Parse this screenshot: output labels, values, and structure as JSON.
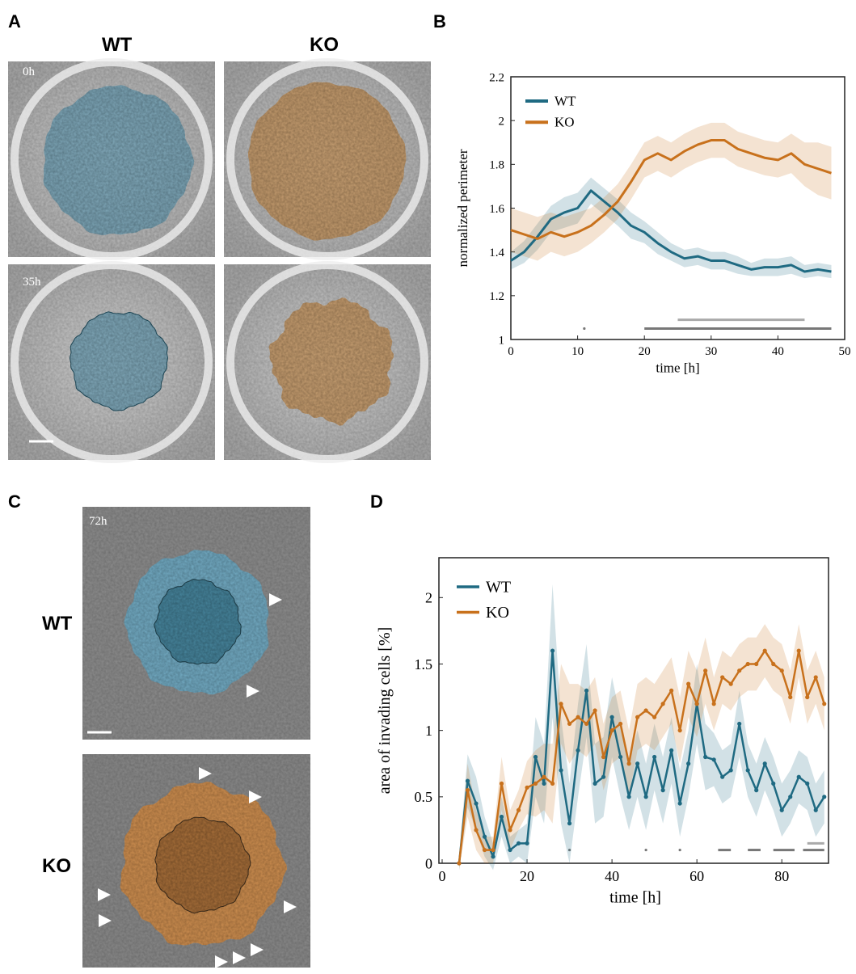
{
  "panel_labels": [
    "A",
    "B",
    "C",
    "D"
  ],
  "panel_a": {
    "column_titles": [
      "WT",
      "KO"
    ],
    "time_labels": [
      "0h",
      "35h"
    ]
  },
  "panel_c": {
    "time_label": "72h",
    "row_labels": [
      "WT",
      "KO"
    ]
  },
  "chart_data": [
    {
      "type": "line",
      "xlabel": "time [h]",
      "ylabel": "normalized perimeter",
      "xlim": [
        0,
        50
      ],
      "ylim": [
        1,
        2.2
      ],
      "xticks": [
        0,
        10,
        20,
        30,
        40,
        50
      ],
      "yticks": [
        1,
        1.2,
        1.4,
        1.6,
        1.8,
        2,
        2.2
      ],
      "legend": "upper-left",
      "markers": false,
      "x": [
        0,
        2,
        4,
        6,
        8,
        10,
        12,
        14,
        16,
        18,
        20,
        22,
        24,
        26,
        28,
        30,
        32,
        34,
        36,
        38,
        40,
        42,
        44,
        46,
        48
      ],
      "series": [
        {
          "name": "WT",
          "color": "#1f6a82",
          "values": [
            1.36,
            1.4,
            1.47,
            1.55,
            1.58,
            1.6,
            1.68,
            1.63,
            1.58,
            1.52,
            1.49,
            1.44,
            1.4,
            1.37,
            1.38,
            1.36,
            1.36,
            1.34,
            1.32,
            1.33,
            1.33,
            1.34,
            1.31,
            1.32,
            1.31
          ],
          "error": [
            0.04,
            0.05,
            0.06,
            0.06,
            0.07,
            0.07,
            0.06,
            0.06,
            0.06,
            0.06,
            0.05,
            0.05,
            0.04,
            0.04,
            0.04,
            0.04,
            0.04,
            0.04,
            0.03,
            0.04,
            0.04,
            0.04,
            0.03,
            0.03,
            0.03
          ]
        },
        {
          "name": "KO",
          "color": "#c8711c",
          "values": [
            1.5,
            1.48,
            1.46,
            1.49,
            1.47,
            1.49,
            1.52,
            1.57,
            1.63,
            1.72,
            1.82,
            1.85,
            1.82,
            1.86,
            1.89,
            1.91,
            1.91,
            1.87,
            1.85,
            1.83,
            1.82,
            1.85,
            1.8,
            1.78,
            1.76
          ],
          "error": [
            0.1,
            0.1,
            0.1,
            0.09,
            0.09,
            0.09,
            0.08,
            0.08,
            0.08,
            0.08,
            0.08,
            0.08,
            0.08,
            0.08,
            0.08,
            0.08,
            0.08,
            0.08,
            0.08,
            0.08,
            0.08,
            0.09,
            0.1,
            0.12,
            0.12
          ]
        }
      ],
      "significance": [
        {
          "x": [
            11,
            11
          ],
          "y": 1.05,
          "color": "#777777"
        },
        {
          "x": [
            20,
            48
          ],
          "y": 1.05,
          "color": "#777777"
        },
        {
          "x": [
            25,
            44
          ],
          "y": 1.09,
          "color": "#aaaaaa"
        }
      ]
    },
    {
      "type": "line",
      "xlabel": "time [h]",
      "ylabel": "area of invading cells [%]",
      "xlim": [
        0,
        91
      ],
      "ylim": [
        0,
        2.3
      ],
      "xticks": [
        0,
        20,
        40,
        60,
        80
      ],
      "yticks": [
        0,
        0.5,
        1,
        1.5,
        2
      ],
      "legend": "upper-left",
      "markers": true,
      "x": [
        4,
        6,
        8,
        10,
        12,
        14,
        16,
        18,
        20,
        22,
        24,
        26,
        28,
        30,
        32,
        34,
        36,
        38,
        40,
        42,
        44,
        46,
        48,
        50,
        52,
        54,
        56,
        58,
        60,
        62,
        64,
        66,
        68,
        70,
        72,
        74,
        76,
        78,
        80,
        82,
        84,
        86,
        88,
        90
      ],
      "series": [
        {
          "name": "WT",
          "color": "#1f6a82",
          "values": [
            0,
            0.62,
            0.45,
            0.2,
            0.05,
            0.35,
            0.1,
            0.15,
            0.15,
            0.8,
            0.6,
            1.6,
            0.7,
            0.3,
            0.85,
            1.3,
            0.6,
            0.65,
            1.1,
            0.8,
            0.5,
            0.75,
            0.5,
            0.8,
            0.55,
            0.85,
            0.45,
            0.75,
            1.2,
            0.8,
            0.78,
            0.65,
            0.7,
            1.05,
            0.7,
            0.55,
            0.75,
            0.6,
            0.4,
            0.5,
            0.65,
            0.6,
            0.4,
            0.5
          ],
          "error": [
            0.05,
            0.2,
            0.2,
            0.15,
            0.1,
            0.15,
            0.1,
            0.1,
            0.15,
            0.3,
            0.3,
            0.5,
            0.4,
            0.3,
            0.35,
            0.35,
            0.3,
            0.3,
            0.3,
            0.3,
            0.25,
            0.25,
            0.25,
            0.25,
            0.25,
            0.25,
            0.25,
            0.25,
            0.3,
            0.25,
            0.2,
            0.2,
            0.2,
            0.25,
            0.2,
            0.2,
            0.2,
            0.2,
            0.2,
            0.2,
            0.2,
            0.2,
            0.2,
            0.2
          ]
        },
        {
          "name": "KO",
          "color": "#c8711c",
          "values": [
            0,
            0.55,
            0.25,
            0.1,
            0.1,
            0.6,
            0.25,
            0.4,
            0.57,
            0.6,
            0.65,
            0.6,
            1.2,
            1.05,
            1.1,
            1.05,
            1.15,
            0.8,
            1,
            1.05,
            0.75,
            1.1,
            1.15,
            1.1,
            1.2,
            1.3,
            1,
            1.35,
            1.2,
            1.45,
            1.2,
            1.4,
            1.35,
            1.45,
            1.5,
            1.5,
            1.6,
            1.5,
            1.45,
            1.25,
            1.6,
            1.25,
            1.4,
            1.2
          ],
          "error": [
            0.05,
            0.2,
            0.15,
            0.1,
            0.1,
            0.2,
            0.15,
            0.15,
            0.2,
            0.25,
            0.25,
            0.3,
            0.3,
            0.3,
            0.25,
            0.25,
            0.25,
            0.25,
            0.25,
            0.25,
            0.25,
            0.25,
            0.25,
            0.25,
            0.25,
            0.25,
            0.25,
            0.25,
            0.25,
            0.25,
            0.2,
            0.2,
            0.2,
            0.2,
            0.2,
            0.2,
            0.2,
            0.2,
            0.2,
            0.2,
            0.2,
            0.2,
            0.2,
            0.2
          ]
        }
      ],
      "significance": [
        {
          "x": [
            30,
            30
          ],
          "y": 0.1,
          "color": "#777777"
        },
        {
          "x": [
            48,
            48
          ],
          "y": 0.1,
          "color": "#777777"
        },
        {
          "x": [
            56,
            56
          ],
          "y": 0.1,
          "color": "#777777"
        },
        {
          "x": [
            65,
            68
          ],
          "y": 0.1,
          "color": "#777777"
        },
        {
          "x": [
            72,
            75
          ],
          "y": 0.1,
          "color": "#777777"
        },
        {
          "x": [
            78,
            83
          ],
          "y": 0.1,
          "color": "#777777"
        },
        {
          "x": [
            85,
            90
          ],
          "y": 0.1,
          "color": "#777777"
        },
        {
          "x": [
            86,
            90
          ],
          "y": 0.15,
          "color": "#aaaaaa"
        }
      ]
    }
  ]
}
